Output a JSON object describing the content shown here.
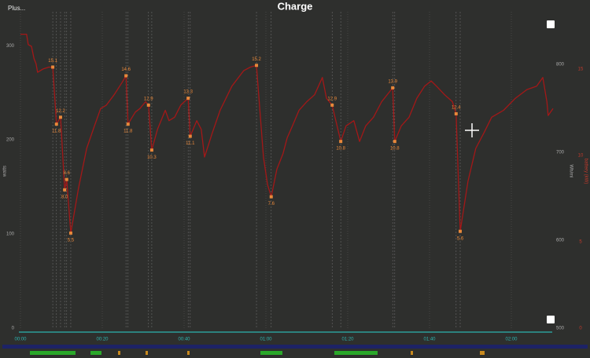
{
  "chart_data": {
    "type": "line",
    "menu": "Plus...",
    "title": "Charge",
    "xlim": [
      0,
      130
    ],
    "xticks": [
      {
        "value": 0,
        "label": "00:00"
      },
      {
        "value": 20,
        "label": "00:20"
      },
      {
        "value": 40,
        "label": "00:40"
      },
      {
        "value": 60,
        "label": "01:00"
      },
      {
        "value": 80,
        "label": "01:20"
      },
      {
        "value": 100,
        "label": "01:40"
      },
      {
        "value": 120,
        "label": "02:00"
      }
    ],
    "ylim": [
      0,
      336
    ],
    "yticks": [
      0,
      100,
      200,
      300
    ],
    "y_label": "watts",
    "y2lim": [
      500,
      860
    ],
    "y2ticks": [
      500,
      600,
      700,
      800
    ],
    "y2_label": "Wh/mi",
    "y3lim": [
      0,
      18.3
    ],
    "y3ticks": [
      0,
      5,
      10,
      15
    ],
    "y3_label": "battery (kW)",
    "y3_color": "#c0392b",
    "series": [
      {
        "color": "#a31818",
        "axis": "y3",
        "x": [
          0.0,
          1.5,
          1.9,
          2.7,
          3.3,
          3.8,
          4.2,
          5.6,
          6.9,
          7.9,
          8.8,
          9.8,
          10.8,
          11.3,
          12.3,
          14.2,
          16.2,
          18.1,
          19.6,
          21.0,
          22.9,
          24.8,
          25.8,
          26.3,
          27.3,
          28.1,
          29.2,
          30.6,
          31.3,
          32.1,
          33.5,
          35.4,
          36.3,
          37.7,
          39.2,
          41.0,
          41.5,
          43.1,
          44.2,
          45.0,
          46.9,
          48.8,
          51.7,
          54.6,
          56.2,
          57.7,
          59.4,
          60.4,
          61.3,
          62.7,
          64.2,
          65.2,
          66.5,
          68.1,
          70.0,
          71.9,
          73.8,
          74.8,
          76.2,
          78.3,
          79.6,
          81.5,
          82.9,
          84.4,
          86.3,
          88.3,
          91.0,
          91.5,
          93.1,
          95.0,
          96.9,
          98.8,
          100.4,
          101.7,
          103.7,
          105.6,
          106.5,
          107.5,
          109.4,
          111.3,
          113.3,
          115.2,
          118.1,
          121.0,
          123.8,
          126.2,
          127.7,
          128.7,
          129.0,
          130.2
        ],
        "values": [
          17.0,
          17.0,
          16.4,
          16.3,
          15.6,
          15.3,
          14.8,
          15.0,
          15.1,
          15.1,
          11.8,
          12.2,
          8.0,
          8.6,
          5.5,
          8.1,
          10.4,
          11.7,
          12.7,
          12.9,
          13.5,
          14.2,
          14.6,
          11.8,
          12.2,
          12.5,
          12.7,
          13.1,
          12.9,
          10.3,
          11.5,
          12.6,
          12.0,
          12.2,
          12.9,
          13.3,
          11.1,
          12.0,
          11.5,
          9.9,
          11.3,
          12.6,
          14.0,
          14.9,
          15.1,
          15.2,
          9.9,
          8.3,
          7.6,
          9.2,
          10.1,
          11.0,
          11.7,
          12.6,
          13.1,
          13.5,
          14.5,
          13.3,
          12.9,
          10.8,
          11.7,
          12.0,
          10.8,
          11.7,
          12.2,
          13.1,
          13.9,
          10.8,
          11.7,
          12.2,
          13.3,
          14.0,
          14.3,
          14.0,
          13.5,
          13.1,
          12.4,
          5.6,
          8.5,
          10.4,
          11.3,
          12.2,
          12.6,
          13.3,
          13.8,
          14.0,
          14.5,
          13.1,
          12.3,
          12.7
        ]
      }
    ],
    "markers": {
      "color": "#e8883a",
      "x": [
        7.9,
        8.8,
        9.8,
        10.8,
        11.3,
        12.3,
        25.8,
        26.3,
        31.3,
        32.1,
        41.0,
        41.5,
        57.7,
        61.3,
        76.2,
        78.3,
        91.0,
        91.5,
        106.5,
        107.5
      ],
      "values": [
        15.1,
        11.8,
        12.2,
        8.0,
        8.6,
        5.5,
        14.6,
        11.8,
        12.9,
        10.3,
        13.3,
        11.1,
        15.2,
        7.6,
        12.9,
        10.8,
        13.9,
        10.8,
        12.4,
        5.6
      ],
      "value_labels": [
        "15.1",
        "11.8",
        "12.2",
        "8.0",
        "8.6",
        "5.5",
        "14.6",
        "11.8",
        "12.9",
        "10.3",
        "13.3",
        "11.1",
        "15.2",
        "7.6",
        "12.9",
        "10.8",
        "13.9",
        "10.8",
        "12.4",
        "5.6"
      ]
    }
  }
}
